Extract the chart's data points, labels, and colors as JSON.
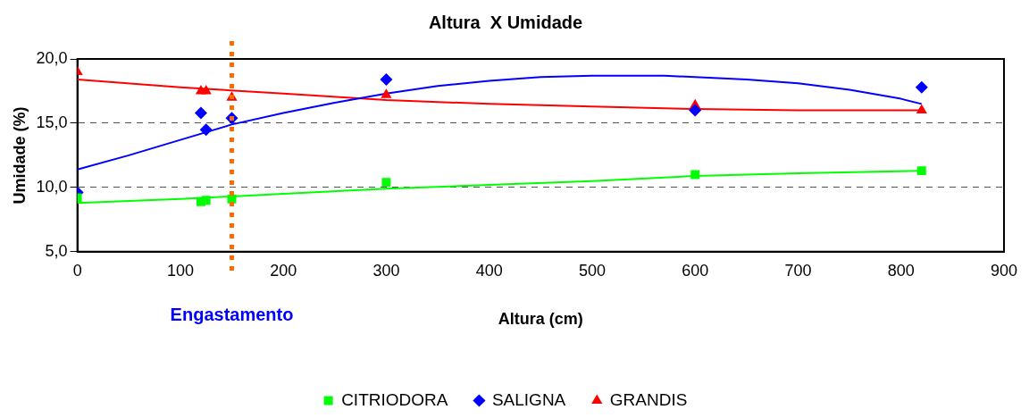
{
  "chart_data": {
    "type": "scatter",
    "title": "Altura  X Umidade",
    "xlabel": "Altura (cm)",
    "ylabel": "Umidade (%)",
    "xlim": [
      0,
      900
    ],
    "xticks": [
      0,
      100,
      200,
      300,
      400,
      500,
      600,
      700,
      800,
      900
    ],
    "ylim": [
      5,
      20
    ],
    "yticks": [
      {
        "value": 5,
        "label": "5,0"
      },
      {
        "value": 10,
        "label": "10,0"
      },
      {
        "value": 15,
        "label": "15,0"
      },
      {
        "value": 20,
        "label": "20,0"
      }
    ],
    "grid": "y",
    "legend": "bottom",
    "ref_lines": [
      {
        "axis": "x",
        "value": 150,
        "label": "Engastamento",
        "color": "#ff6a00",
        "line_style": "dotted"
      }
    ],
    "series": [
      {
        "name": "CITRIODORA",
        "color": "#00ff00",
        "marker": "square",
        "x": [
          0,
          120,
          125,
          150,
          300,
          600,
          820
        ],
        "values": [
          9.2,
          8.9,
          9.0,
          9.1,
          10.4,
          11.0,
          11.3
        ]
      },
      {
        "name": "SALIGNA",
        "color": "#0000ff",
        "marker": "diamond",
        "x": [
          0,
          120,
          125,
          150,
          300,
          600,
          820
        ],
        "values": [
          9.6,
          15.8,
          14.5,
          15.4,
          18.4,
          16.0,
          17.8
        ]
      },
      {
        "name": "GRANDIS",
        "color": "#ff0000",
        "marker": "triangle",
        "x": [
          0,
          120,
          125,
          150,
          300,
          600,
          820
        ],
        "values": [
          19.0,
          17.5,
          17.5,
          17.0,
          17.2,
          16.4,
          16.0
        ]
      },
      {
        "type": "line",
        "color": "#00ff00",
        "marker": "none",
        "x": [
          0,
          100,
          200,
          300,
          400,
          500,
          600,
          700,
          820
        ],
        "values": [
          8.8,
          9.1,
          9.5,
          9.9,
          10.2,
          10.5,
          10.9,
          11.1,
          11.3
        ]
      },
      {
        "type": "line",
        "color": "#0000ff",
        "marker": "none",
        "x": [
          0,
          50,
          100,
          150,
          200,
          250,
          300,
          350,
          400,
          450,
          500,
          570,
          650,
          700,
          750,
          800,
          820
        ],
        "values": [
          11.4,
          12.5,
          13.7,
          14.9,
          15.8,
          16.6,
          17.3,
          17.9,
          18.3,
          18.6,
          18.7,
          18.7,
          18.4,
          18.1,
          17.6,
          16.9,
          16.5
        ]
      },
      {
        "type": "line",
        "color": "#ff0000",
        "marker": "none",
        "x": [
          0,
          100,
          200,
          300,
          400,
          500,
          600,
          700,
          820
        ],
        "values": [
          18.4,
          17.8,
          17.3,
          16.8,
          16.5,
          16.3,
          16.1,
          16.0,
          16.0
        ]
      }
    ]
  }
}
